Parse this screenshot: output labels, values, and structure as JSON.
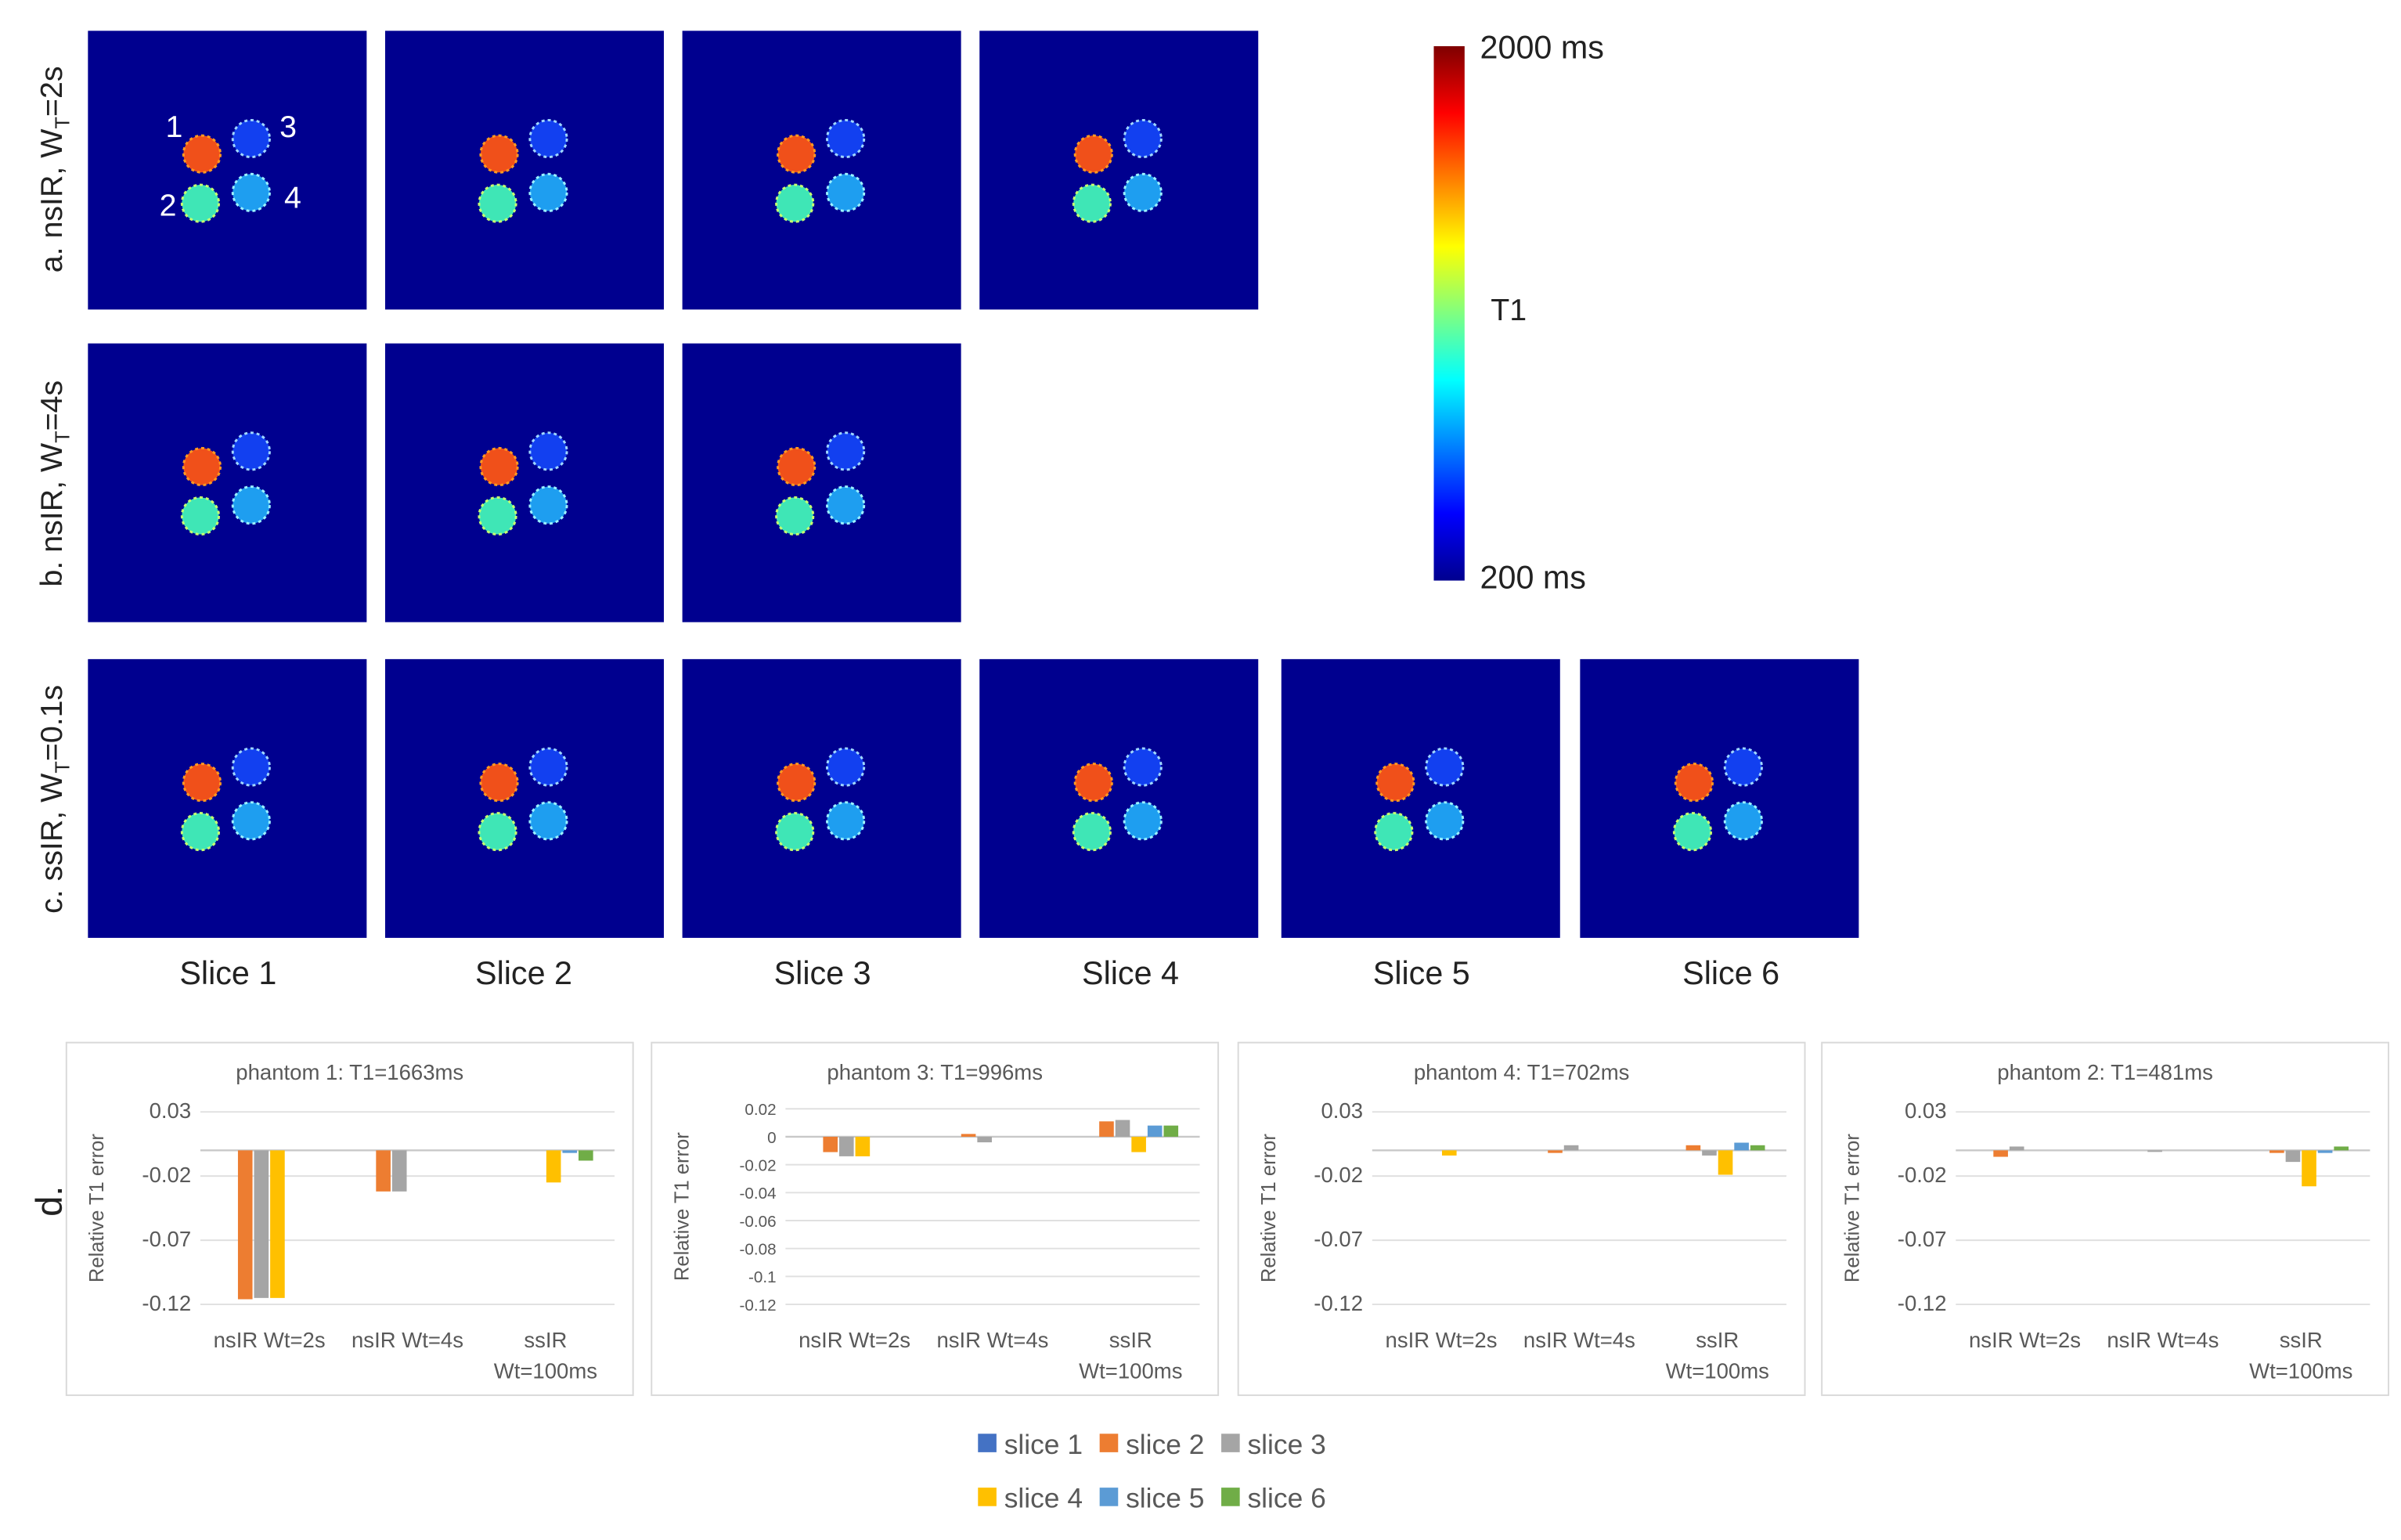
{
  "figure": {
    "row_labels": [
      {
        "prefix": "a. nsIR, W",
        "sub": "T",
        "suffix": "=2s"
      },
      {
        "prefix": "b. nsIR, W",
        "sub": "T",
        "suffix": "=4s"
      },
      {
        "prefix": "c. ssIR, W",
        "sub": "T",
        "suffix": "=0.1s"
      }
    ],
    "slice_labels": [
      "Slice 1",
      "Slice 2",
      "Slice 3",
      "Slice 4",
      "Slice 5",
      "Slice 6"
    ],
    "phantom_numbers": [
      "1",
      "2",
      "3",
      "4"
    ],
    "panel_d_label": "d.",
    "map_background": "#00008F"
  },
  "colorbar": {
    "max_label": "2000 ms",
    "mid_label": "T1",
    "min_label": "200 ms",
    "colors": [
      "#7f0000",
      "#ff0000",
      "#ff8000",
      "#ffff00",
      "#80ff80",
      "#00ffff",
      "#0080ff",
      "#0000ff",
      "#00008f"
    ]
  },
  "legend": {
    "row1": [
      "slice 1",
      "slice 2",
      "slice 3"
    ],
    "row2": [
      "slice 4",
      "slice 5",
      "slice 6"
    ]
  },
  "slice_colors": [
    "#4472C4",
    "#ED7D31",
    "#A5A5A5",
    "#FFC000",
    "#5B9BD5",
    "#70AD47"
  ],
  "chart_data": [
    {
      "type": "bar",
      "title": "phantom 1: T1=1663ms",
      "ylabel": "Relative T1 error",
      "xlabel": "",
      "ylim": [
        -0.12,
        0.03
      ],
      "ticks": [
        0.03,
        -0.02,
        -0.07,
        -0.12
      ],
      "tick_labels": [
        "0.03",
        "-0.02",
        "-0.07",
        "-0.12"
      ],
      "categories": [
        [
          "nsIR Wt=2s"
        ],
        [
          "nsIR Wt=4s"
        ],
        [
          "ssIR",
          "Wt=100ms"
        ]
      ],
      "series": [
        {
          "name": "slice 1",
          "values": [
            null,
            null,
            null
          ]
        },
        {
          "name": "slice 2",
          "values": [
            -0.116,
            -0.032,
            null
          ]
        },
        {
          "name": "slice 3",
          "values": [
            -0.115,
            -0.032,
            null
          ]
        },
        {
          "name": "slice 4",
          "values": [
            -0.115,
            null,
            -0.025
          ]
        },
        {
          "name": "slice 5",
          "values": [
            null,
            null,
            -0.002
          ]
        },
        {
          "name": "slice 6",
          "values": [
            null,
            null,
            -0.008
          ]
        }
      ]
    },
    {
      "type": "bar",
      "title": "phantom 3: T1=996ms",
      "ylabel": "Relative T1 error",
      "xlabel": "",
      "ylim": [
        -0.12,
        0.02
      ],
      "ticks": [
        0.02,
        0,
        -0.02,
        -0.04,
        -0.06,
        -0.08,
        -0.1,
        -0.12
      ],
      "tick_labels": [
        "0.02",
        "0",
        "-0.02",
        "-0.04",
        "-0.06",
        "-0.08",
        "-0.1",
        "-0.12"
      ],
      "categories": [
        [
          "nsIR Wt=2s"
        ],
        [
          "nsIR Wt=4s"
        ],
        [
          "ssIR",
          "Wt=100ms"
        ]
      ],
      "series": [
        {
          "name": "slice 1",
          "values": [
            null,
            null,
            null
          ]
        },
        {
          "name": "slice 2",
          "values": [
            -0.011,
            0.002,
            0.011
          ]
        },
        {
          "name": "slice 3",
          "values": [
            -0.014,
            -0.004,
            0.012
          ]
        },
        {
          "name": "slice 4",
          "values": [
            -0.014,
            null,
            -0.011
          ]
        },
        {
          "name": "slice 5",
          "values": [
            null,
            null,
            0.008
          ]
        },
        {
          "name": "slice 6",
          "values": [
            null,
            null,
            0.008
          ]
        }
      ]
    },
    {
      "type": "bar",
      "title": "phantom 4: T1=702ms",
      "ylabel": "Relative T1 error",
      "xlabel": "",
      "ylim": [
        -0.12,
        0.03
      ],
      "ticks": [
        0.03,
        -0.02,
        -0.07,
        -0.12
      ],
      "tick_labels": [
        "0.03",
        "-0.02",
        "-0.07",
        "-0.12"
      ],
      "categories": [
        [
          "nsIR Wt=2s"
        ],
        [
          "nsIR Wt=4s"
        ],
        [
          "ssIR",
          "Wt=100ms"
        ]
      ],
      "series": [
        {
          "name": "slice 1",
          "values": [
            null,
            null,
            null
          ]
        },
        {
          "name": "slice 2",
          "values": [
            null,
            -0.002,
            0.004
          ]
        },
        {
          "name": "slice 3",
          "values": [
            null,
            0.004,
            -0.004
          ]
        },
        {
          "name": "slice 4",
          "values": [
            -0.004,
            null,
            -0.019
          ]
        },
        {
          "name": "slice 5",
          "values": [
            null,
            null,
            0.006
          ]
        },
        {
          "name": "slice 6",
          "values": [
            null,
            null,
            0.004
          ]
        }
      ]
    },
    {
      "type": "bar",
      "title": "phantom 2: T1=481ms",
      "ylabel": "Relative T1 error",
      "xlabel": "",
      "ylim": [
        -0.12,
        0.03
      ],
      "ticks": [
        0.03,
        -0.02,
        -0.07,
        -0.12
      ],
      "tick_labels": [
        "0.03",
        "-0.02",
        "-0.07",
        "-0.12"
      ],
      "categories": [
        [
          "nsIR Wt=2s"
        ],
        [
          "nsIR Wt=4s"
        ],
        [
          "ssIR",
          "Wt=100ms"
        ]
      ],
      "series": [
        {
          "name": "slice 1",
          "values": [
            null,
            null,
            null
          ]
        },
        {
          "name": "slice 2",
          "values": [
            -0.005,
            null,
            -0.002
          ]
        },
        {
          "name": "slice 3",
          "values": [
            0.003,
            -0.001,
            -0.009
          ]
        },
        {
          "name": "slice 4",
          "values": [
            null,
            null,
            -0.028
          ]
        },
        {
          "name": "slice 5",
          "values": [
            null,
            null,
            -0.002
          ]
        },
        {
          "name": "slice 6",
          "values": [
            null,
            null,
            0.003
          ]
        }
      ]
    }
  ]
}
